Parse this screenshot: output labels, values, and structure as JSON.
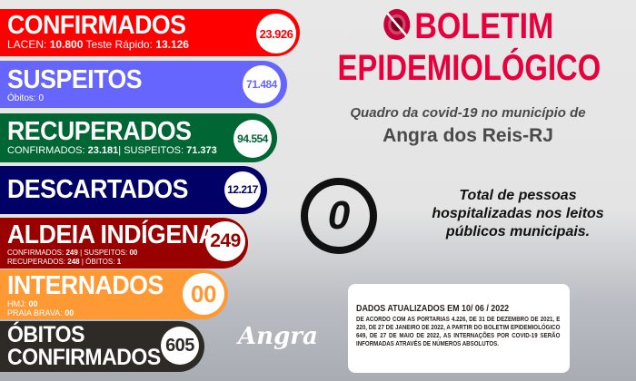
{
  "colors": {
    "confirmados": "#ff0000",
    "suspeitos": "#6666ff",
    "recuperados": "#006633",
    "descartados": "#000066",
    "aldeia": "#990000",
    "internados": "#ff9933",
    "obitos": "#2e2a26",
    "title": "#e8003d"
  },
  "confirmados": {
    "title": "CONFIRMADOS",
    "value": "23.926",
    "lacen_label": "LACEN:",
    "lacen": "10.800",
    "rapido_label": "Teste Rápido:",
    "rapido": "13.126"
  },
  "suspeitos": {
    "title": "SUSPEITOS",
    "value": "71.484",
    "obitos": "Óbitos: 0"
  },
  "recuperados": {
    "title": "RECUPERADOS",
    "value": "94.554",
    "conf_label": "CONFIRMADOS:",
    "conf": "23.181",
    "sep": "|",
    "susp_label": "SUSPEITOS:",
    "susp": "71.373"
  },
  "descartados": {
    "title": "DESCARTADOS",
    "value": "12.217"
  },
  "aldeia": {
    "title": "ALDEIA INDÍGENA",
    "value": "249",
    "conf_label": "CONFIRMADOS:",
    "conf": "249",
    "susp_label": "| SUSPEITOS:",
    "susp": "00",
    "rec_label": "RECUPERADOS:",
    "rec": "248",
    "ob_label": "| ÓBITOS:",
    "ob": "1"
  },
  "internados": {
    "title": "INTERNADOS",
    "value": "00",
    "hmj_label": "HMJ:",
    "hmj": "00",
    "pb_label": "PRAIA BRAVA:",
    "pb": "00"
  },
  "obitos": {
    "title1": "ÓBITOS",
    "title2": "CONFIRMADOS",
    "value": "605"
  },
  "header": {
    "line1": "BOLETIM",
    "line2": "EPIDEMIOLÓGICO",
    "subtitle": "Quadro da covid-19 no município de",
    "city": "Angra dos Reis-RJ",
    "icon": "virus-block-icon"
  },
  "hospital": {
    "value": "0",
    "text": "Total de pessoas hospitalizadas nos leitos públicos municipais."
  },
  "info": {
    "heading": "DADOS ATUALIZADOS EM  10/ 06 / 2022",
    "text": "DE ACORDO COM AS PORTARIAS 4.226, DE 31 DE DEZEMBRO DE 2021, E 220, DE 27 DE JANEIRO DE 2022, A PARTIR DO BOLETIM EPIDEMIOLÓGICO 649, DE 27 DE MAIO DE 2022, AS INTERNAÇÕES POR COVID-19 SERÃO INFORMADAS ATRAVÉS DE NÚMEROS ABSOLUTOS."
  },
  "logo": "Angra"
}
